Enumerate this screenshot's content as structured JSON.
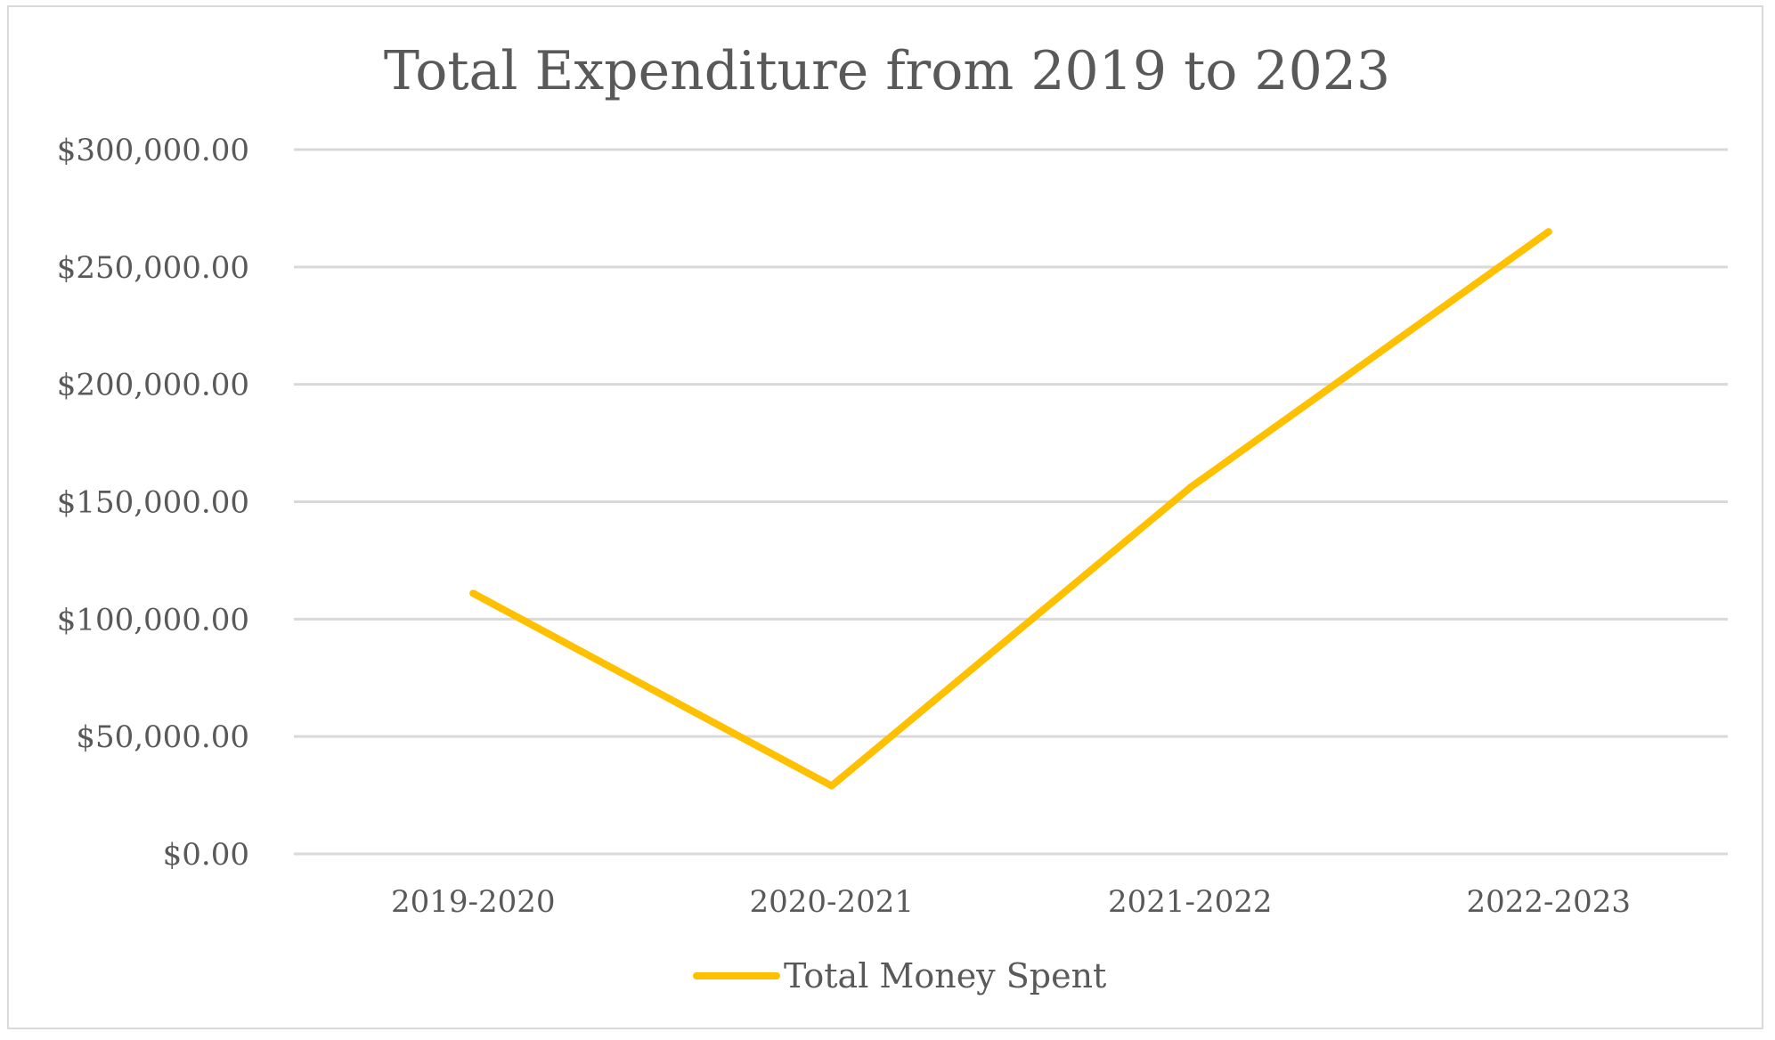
{
  "chart_data": {
    "type": "line",
    "title": "Total Expenditure from 2019 to 2023",
    "xlabel": "",
    "ylabel": "",
    "categories": [
      "2019-2020",
      "2020-2021",
      "2021-2022",
      "2022-2023"
    ],
    "series": [
      {
        "name": "Total Money Spent",
        "values": [
          111000,
          29000,
          156000,
          265000
        ],
        "color": "#FFC000"
      }
    ],
    "ylim": [
      0,
      300000
    ],
    "y_ticks": [
      {
        "value": 0,
        "label": "$0.00"
      },
      {
        "value": 50000,
        "label": "$50,000.00"
      },
      {
        "value": 100000,
        "label": "$100,000.00"
      },
      {
        "value": 150000,
        "label": "$150,000.00"
      },
      {
        "value": 200000,
        "label": "$200,000.00"
      },
      {
        "value": 250000,
        "label": "$250,000.00"
      },
      {
        "value": 300000,
        "label": "$300,000.00"
      }
    ],
    "grid": true,
    "legend": "bottom",
    "gridline_color": "#D9D9D9",
    "text_color": "#595959"
  }
}
